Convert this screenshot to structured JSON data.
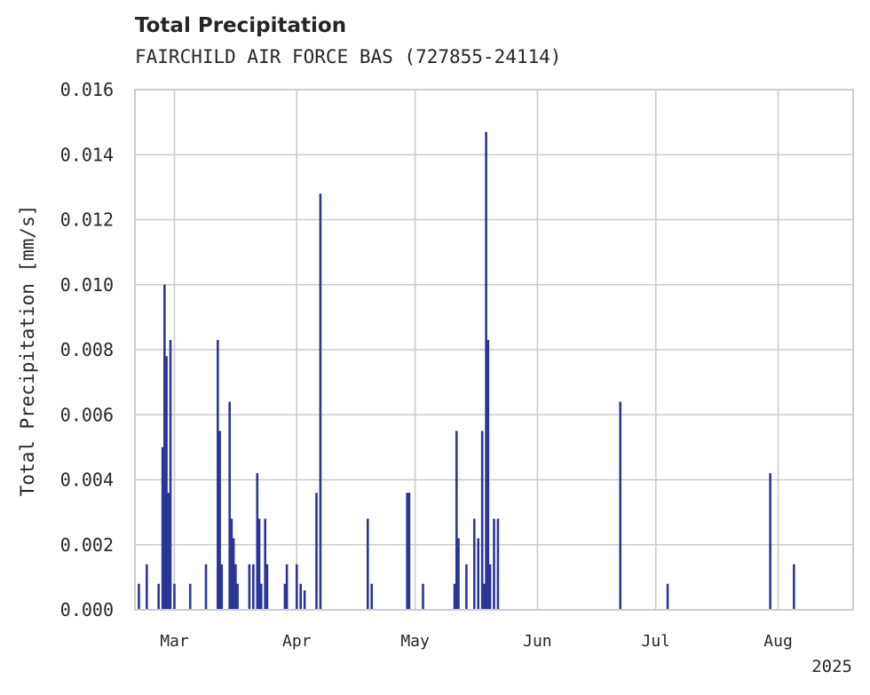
{
  "chart_data": {
    "type": "bar",
    "title": "Total Precipitation",
    "subtitle": "FAIRCHILD AIR FORCE BAS (727855-24114)",
    "ylabel": "Total Precipitation [mm/s]",
    "xlabel": "",
    "ylim": [
      0,
      0.016
    ],
    "yticks": [
      "0.000",
      "0.002",
      "0.004",
      "0.006",
      "0.008",
      "0.010",
      "0.012",
      "0.014",
      "0.016"
    ],
    "xlim": [
      "2025-02-19",
      "2025-08-20"
    ],
    "xtick_labels": [
      "Mar",
      "Apr",
      "May",
      "Jun",
      "Jul",
      "Aug"
    ],
    "xtick_dates": [
      "2025-03-01",
      "2025-04-01",
      "2025-05-01",
      "2025-06-01",
      "2025-07-01",
      "2025-08-01"
    ],
    "year_label": "2025",
    "grid": true,
    "bar_color": "#2b3596",
    "series": [
      {
        "name": "Total Precipitation",
        "x": [
          "2025-02-20",
          "2025-02-22",
          "2025-02-25",
          "2025-02-26",
          "2025-02-26T12",
          "2025-02-27",
          "2025-02-27T12",
          "2025-02-28",
          "2025-03-01",
          "2025-03-05",
          "2025-03-09",
          "2025-03-12",
          "2025-03-12T12",
          "2025-03-13",
          "2025-03-15",
          "2025-03-15T12",
          "2025-03-16",
          "2025-03-16T12",
          "2025-03-17",
          "2025-03-20",
          "2025-03-21",
          "2025-03-22",
          "2025-03-22T12",
          "2025-03-23",
          "2025-03-24",
          "2025-03-24T12",
          "2025-03-29",
          "2025-03-29T12",
          "2025-04-01",
          "2025-04-02",
          "2025-04-03",
          "2025-04-06",
          "2025-04-07",
          "2025-04-19",
          "2025-04-20",
          "2025-04-29",
          "2025-04-29T12",
          "2025-05-03",
          "2025-05-11",
          "2025-05-11T12",
          "2025-05-12",
          "2025-05-14",
          "2025-05-16",
          "2025-05-17",
          "2025-05-18",
          "2025-05-18T12",
          "2025-05-19",
          "2025-05-19T12",
          "2025-05-20",
          "2025-05-21",
          "2025-05-22",
          "2025-06-22",
          "2025-07-04",
          "2025-07-30",
          "2025-08-05"
        ],
        "values": [
          0.0008,
          0.0014,
          0.0008,
          0.005,
          0.01,
          0.0078,
          0.0036,
          0.0083,
          0.0008,
          0.0008,
          0.0014,
          0.0083,
          0.0055,
          0.0014,
          0.0064,
          0.0028,
          0.0022,
          0.0014,
          0.0008,
          0.0014,
          0.0014,
          0.0042,
          0.0028,
          0.0008,
          0.0028,
          0.0014,
          0.0008,
          0.0014,
          0.0014,
          0.0008,
          0.0006,
          0.0036,
          0.0128,
          0.0028,
          0.0008,
          0.0036,
          0.0036,
          0.0008,
          0.0008,
          0.0055,
          0.0022,
          0.0014,
          0.0028,
          0.0022,
          0.0055,
          0.0008,
          0.0147,
          0.0083,
          0.0014,
          0.0028,
          0.0028,
          0.0064,
          0.0008,
          0.0042,
          0.0014
        ]
      }
    ]
  }
}
